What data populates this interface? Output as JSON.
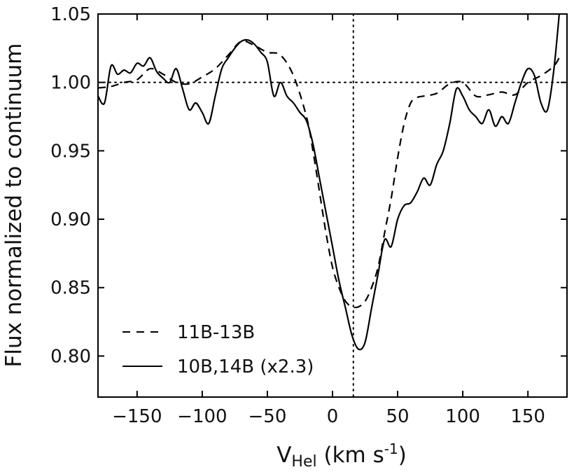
{
  "chart_data": {
    "type": "line",
    "xlabel": {
      "main": "V",
      "sub": "Hel",
      "unit_pre": " (km s",
      "sup": "-1",
      "unit_post": ")"
    },
    "ylabel": "Flux normalized to continuum",
    "xlim": [
      -180,
      180
    ],
    "ylim": [
      0.77,
      1.05
    ],
    "xticks": [
      -150,
      -100,
      -50,
      0,
      50,
      100,
      150
    ],
    "xtick_labels": [
      "−150",
      "−100",
      "−50",
      "0",
      "50",
      "100",
      "150"
    ],
    "yticks": [
      0.8,
      0.85,
      0.9,
      0.95,
      1.0,
      1.05
    ],
    "ytick_labels": [
      "0.80",
      "0.85",
      "0.90",
      "0.95",
      "1.00",
      "1.05"
    ],
    "reference_lines": {
      "horizontal_y": 1.0,
      "vertical_x": 16
    },
    "legend": {
      "position": "lower-left"
    },
    "series": [
      {
        "name": "11B-13B",
        "style": "dashed",
        "color": "#000000",
        "x": [
          -180,
          -170,
          -160,
          -150,
          -140,
          -130,
          -120,
          -110,
          -100,
          -90,
          -80,
          -70,
          -60,
          -50,
          -40,
          -30,
          -20,
          -15,
          -10,
          -5,
          0,
          5,
          10,
          15,
          20,
          25,
          30,
          35,
          40,
          45,
          50,
          55,
          60,
          65,
          70,
          80,
          90,
          100,
          110,
          120,
          130,
          140,
          150,
          160,
          170,
          175
        ],
        "y": [
          0.996,
          0.997,
          1.0,
          1.002,
          1.01,
          1.006,
          1.0,
          0.999,
          1.004,
          1.01,
          1.02,
          1.03,
          1.027,
          1.022,
          1.02,
          1.005,
          0.975,
          0.95,
          0.92,
          0.89,
          0.865,
          0.85,
          0.84,
          0.836,
          0.836,
          0.84,
          0.85,
          0.865,
          0.89,
          0.915,
          0.945,
          0.97,
          0.985,
          0.989,
          0.99,
          0.992,
          0.999,
          1.0,
          0.99,
          0.991,
          0.993,
          0.991,
          1.0,
          1.005,
          1.012,
          1.02
        ]
      },
      {
        "name": "10B,14B (x2.3)",
        "style": "solid",
        "color": "#000000",
        "x": [
          -180,
          -175,
          -170,
          -165,
          -160,
          -155,
          -150,
          -145,
          -140,
          -135,
          -130,
          -125,
          -120,
          -115,
          -110,
          -105,
          -100,
          -95,
          -90,
          -85,
          -80,
          -75,
          -70,
          -65,
          -60,
          -55,
          -50,
          -45,
          -40,
          -35,
          -30,
          -25,
          -20,
          -15,
          -10,
          -5,
          0,
          5,
          10,
          15,
          20,
          25,
          30,
          35,
          40,
          45,
          50,
          55,
          60,
          65,
          70,
          75,
          80,
          85,
          90,
          95,
          100,
          105,
          110,
          115,
          120,
          125,
          130,
          135,
          140,
          145,
          150,
          155,
          160,
          165,
          170,
          175
        ],
        "y": [
          0.99,
          0.985,
          1.012,
          1.006,
          1.009,
          1.007,
          1.014,
          1.012,
          1.018,
          1.008,
          1.003,
          1.0,
          1.01,
          0.995,
          0.98,
          0.985,
          0.978,
          0.97,
          0.99,
          1.01,
          1.018,
          1.025,
          1.03,
          1.031,
          1.028,
          1.022,
          1.015,
          0.99,
          1.0,
          0.99,
          0.985,
          0.978,
          0.972,
          0.955,
          0.93,
          0.905,
          0.88,
          0.855,
          0.835,
          0.815,
          0.805,
          0.81,
          0.835,
          0.86,
          0.885,
          0.88,
          0.9,
          0.91,
          0.912,
          0.92,
          0.93,
          0.925,
          0.94,
          0.95,
          0.97,
          0.995,
          0.99,
          0.98,
          0.975,
          0.97,
          0.98,
          0.968,
          0.975,
          0.97,
          0.985,
          1.0,
          1.01,
          1.005,
          0.985,
          0.98,
          1.01,
          1.06
        ]
      }
    ]
  }
}
